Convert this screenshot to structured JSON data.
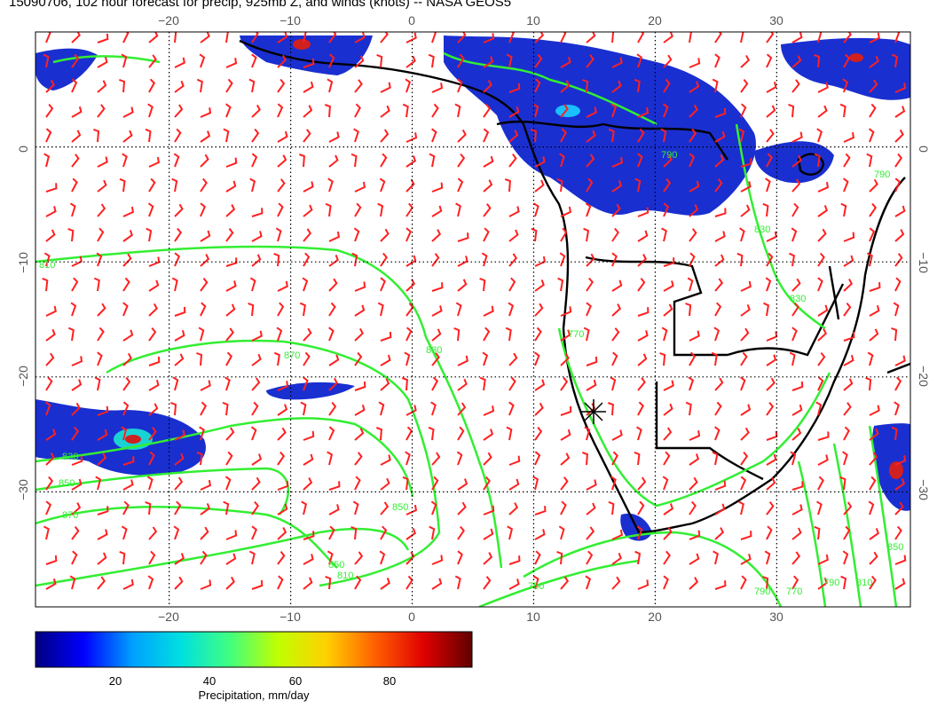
{
  "title": "15090706, 102 hour forecast for precip, 925mb Z, and winds (knots) -- NASA GEOS5",
  "map": {
    "lon_range": [
      -31,
      41
    ],
    "lat_range": [
      -40,
      10
    ],
    "lon_ticks": [
      -20,
      -10,
      0,
      10,
      20,
      30
    ],
    "lat_ticks": [
      0,
      -10,
      -20,
      -30
    ],
    "lon_tick_labels": [
      "−20",
      "−10",
      "0",
      "10",
      "20",
      "30"
    ],
    "lat_tick_labels": [
      "0",
      "−10",
      "−20",
      "−30"
    ],
    "contour_labels": [
      "830",
      "850",
      "870",
      "850",
      "810",
      "830",
      "850",
      "870",
      "790",
      "770",
      "750",
      "790",
      "810",
      "830",
      "850",
      "770",
      "790",
      "810",
      "830",
      "790"
    ],
    "colors": {
      "wind_barbs": "#ff2020",
      "height_contours": "#33ee33",
      "coastlines": "#000000",
      "grid": "#000000"
    },
    "marker_icon": "star-marker-icon"
  },
  "colorbar": {
    "ticks": [
      20,
      40,
      60,
      80
    ],
    "tick_labels": [
      "20",
      "40",
      "60",
      "80"
    ],
    "range": [
      0,
      100
    ],
    "label": "Precipitation, mm/day",
    "colors": [
      "#000080",
      "#0000ff",
      "#00a0ff",
      "#00e0e0",
      "#40ff80",
      "#c0ff00",
      "#ffd000",
      "#ff6000",
      "#e00000",
      "#600000"
    ]
  }
}
